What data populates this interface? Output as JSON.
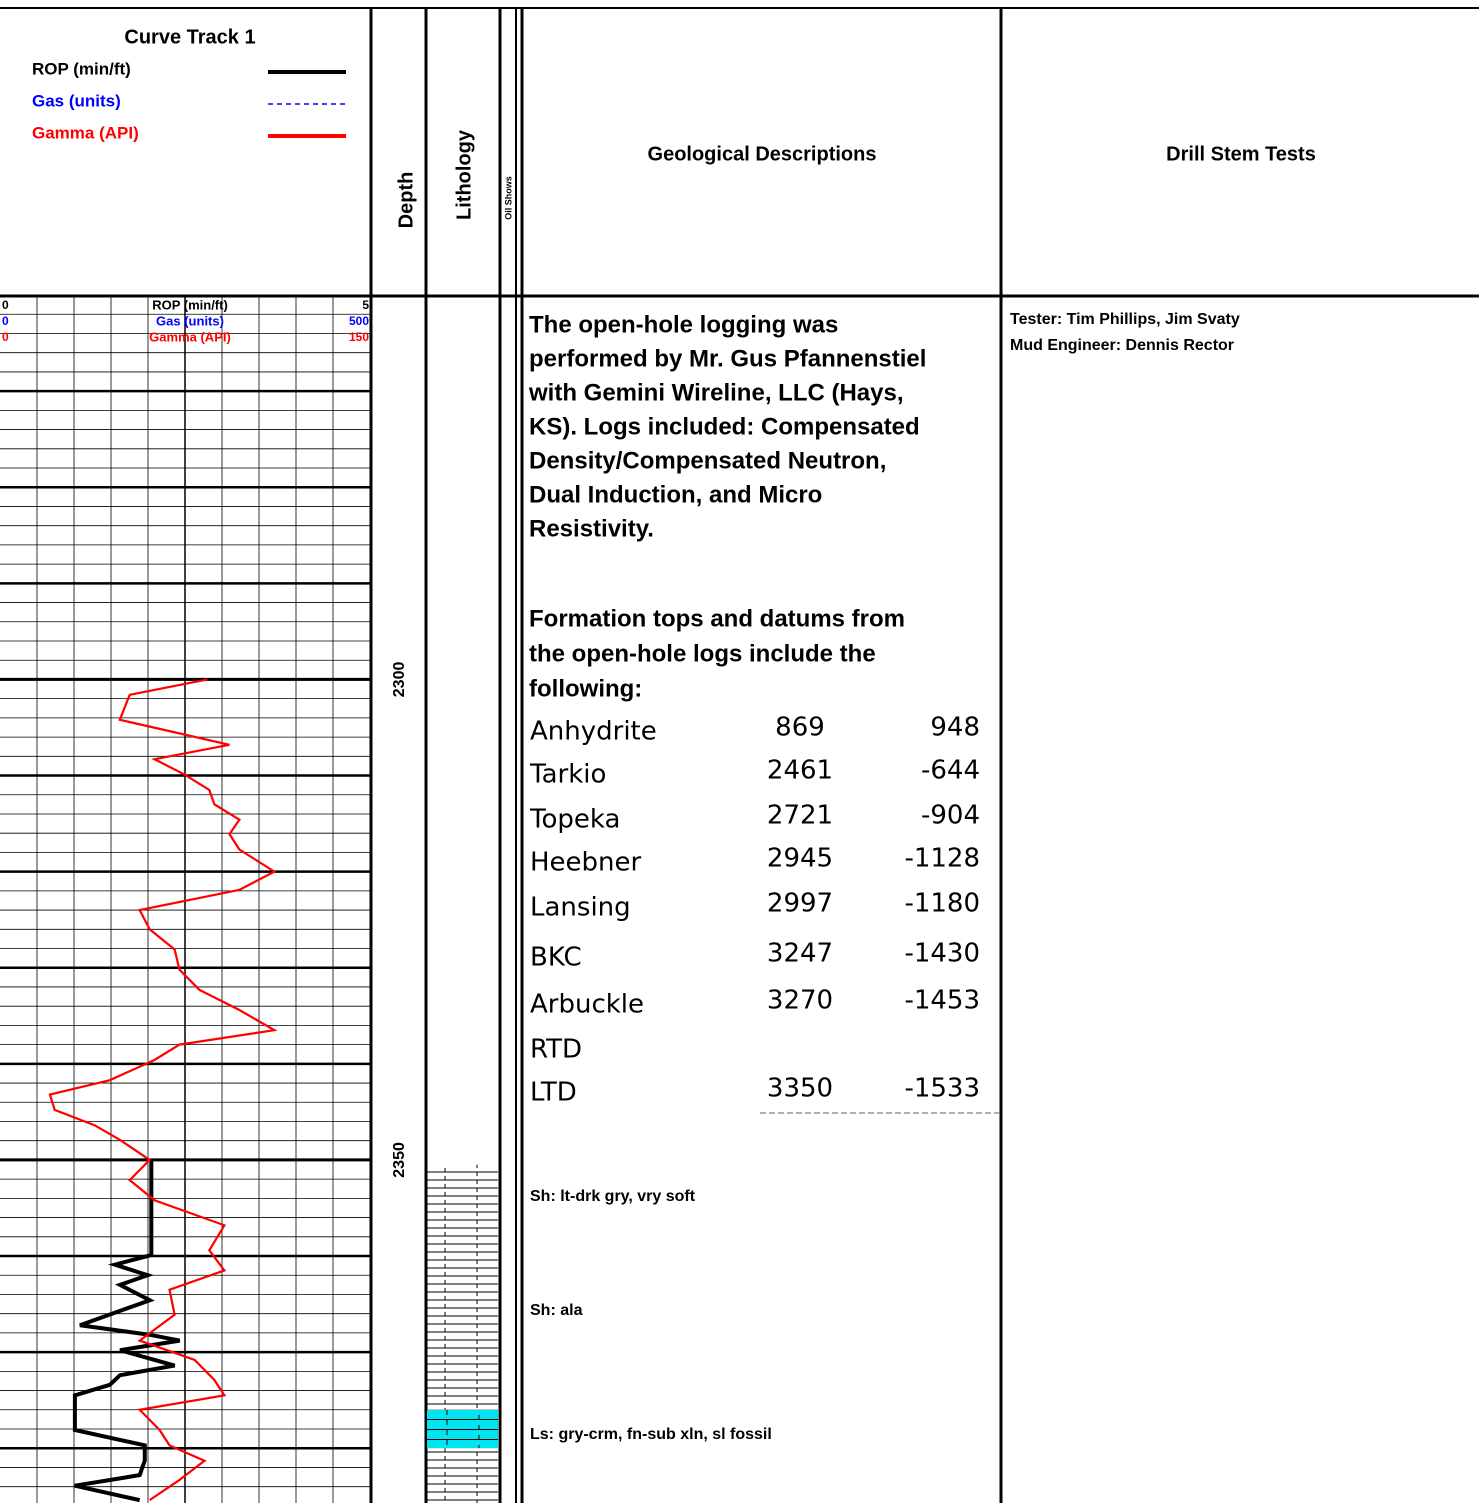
{
  "curve_track": {
    "title": "Curve Track 1",
    "curves": [
      {
        "name": "ROP (min/ft)",
        "color": "#000000",
        "style": "solid",
        "min": 0,
        "max": 5,
        "depths": [
          2350,
          2353.6,
          2359.9,
          2360.9,
          2362,
          2363,
          2364.6,
          2367.2,
          2368.2,
          2368.8,
          2369.8,
          2371.4,
          2372.4,
          2373.4,
          2374.5,
          2378.1,
          2379.7,
          2381.3,
          2382.8,
          2383.9,
          2385.4
        ],
        "values": [
          2.01,
          2.01,
          2.01,
          1.51,
          1.96,
          1.58,
          1.99,
          1.03,
          1.99,
          2.4,
          1.58,
          2.33,
          1.58,
          1.44,
          0.96,
          0.96,
          1.92,
          1.92,
          1.85,
          0.96,
          1.85
        ]
      },
      {
        "name": "Gas (units)",
        "color": "#0000ff",
        "style": "dashed",
        "min": 0,
        "max": 500
      },
      {
        "name": "Gamma (API)",
        "color": "#ff0000",
        "style": "solid",
        "min": 0,
        "max": 150,
        "depths": [
          2300,
          2301.6,
          2304.2,
          2306.8,
          2308.3,
          2309.9,
          2311.5,
          2313,
          2314.6,
          2316.1,
          2317.7,
          2320,
          2321.9,
          2324,
          2326,
          2328.1,
          2330.2,
          2332.3,
          2334.4,
          2336.5,
          2338,
          2339.6,
          2341.7,
          2343.2,
          2344.8,
          2346.4,
          2347.9,
          2350,
          2352.1,
          2354.2,
          2356.8,
          2359.4,
          2361.5,
          2363.5,
          2366.1,
          2368.8,
          2370.8,
          2372.9,
          2374.5,
          2376,
          2378.1,
          2379.7,
          2381.3,
          2383.3,
          2385.4
        ],
        "values": [
          83.4,
          51.4,
          47.3,
          92.5,
          61.6,
          74,
          84.2,
          86.3,
          96.6,
          92.5,
          96.6,
          111,
          96.6,
          55.5,
          59.6,
          69.9,
          71.9,
          80.1,
          96.6,
          111,
          71.9,
          61.6,
          43.2,
          18.5,
          20.5,
          37,
          47.3,
          59.6,
          51.4,
          61.6,
          90.4,
          84.2,
          90.4,
          67.8,
          69.9,
          55.5,
          78.1,
          86.3,
          90.4,
          55.5,
          63.7,
          67.8,
          82.2,
          71.9,
          59.6
        ]
      }
    ]
  },
  "depth": {
    "title": "Depth",
    "lim": [
      2260.1,
      2385.7
    ],
    "ticks": [
      2300,
      2350
    ]
  },
  "lithology": {
    "title": "Lithology",
    "intervals": [
      {
        "type": "shale",
        "top": 2350.5,
        "base": 2376
      },
      {
        "type": "limestone",
        "top": 2376,
        "base": 2380
      },
      {
        "type": "shale",
        "top": 2380,
        "base": 2385.7
      }
    ]
  },
  "oil_shows": {
    "title": "Oil Shows"
  },
  "geological_descriptions": {
    "title": "Geological Descriptions",
    "notes": [
      [
        "The open-hole logging was",
        "performed by Mr. Gus Pfannenstiel",
        "with Gemini Wireline, LLC (Hays,",
        "KS). Logs included: Compensated",
        "Density/Compensated Neutron,",
        "Dual Induction, and Micro",
        "Resistivity."
      ],
      [
        "Formation tops and datums from",
        "the open-hole logs include the",
        "following:"
      ]
    ],
    "formations": [
      [
        "Anhydrite",
        "869",
        "948"
      ],
      [
        "Tarkio",
        "2461",
        "-644"
      ],
      [
        "Topeka",
        "2721",
        "-904"
      ],
      [
        "Heebner",
        "2945",
        "-1128"
      ],
      [
        "Lansing",
        "2997",
        "-1180"
      ],
      [
        "BKC",
        "3247",
        "-1430"
      ],
      [
        "Arbuckle",
        "3270",
        "-1453"
      ],
      [
        "RTD",
        null,
        null
      ],
      [
        "LTD",
        "3350",
        "-1533"
      ]
    ],
    "descriptions": [
      "Sh: lt-drk gry, vry soft",
      "Sh: ala",
      "Ls: gry-crm, fn-sub xln, sl fossil"
    ]
  },
  "drill_stem_tests": {
    "title": "Drill Stem Tests",
    "lines": [
      "Tester: Tim Phillips, Jim Svaty",
      "Mud Engineer: Dennis Rector"
    ]
  }
}
